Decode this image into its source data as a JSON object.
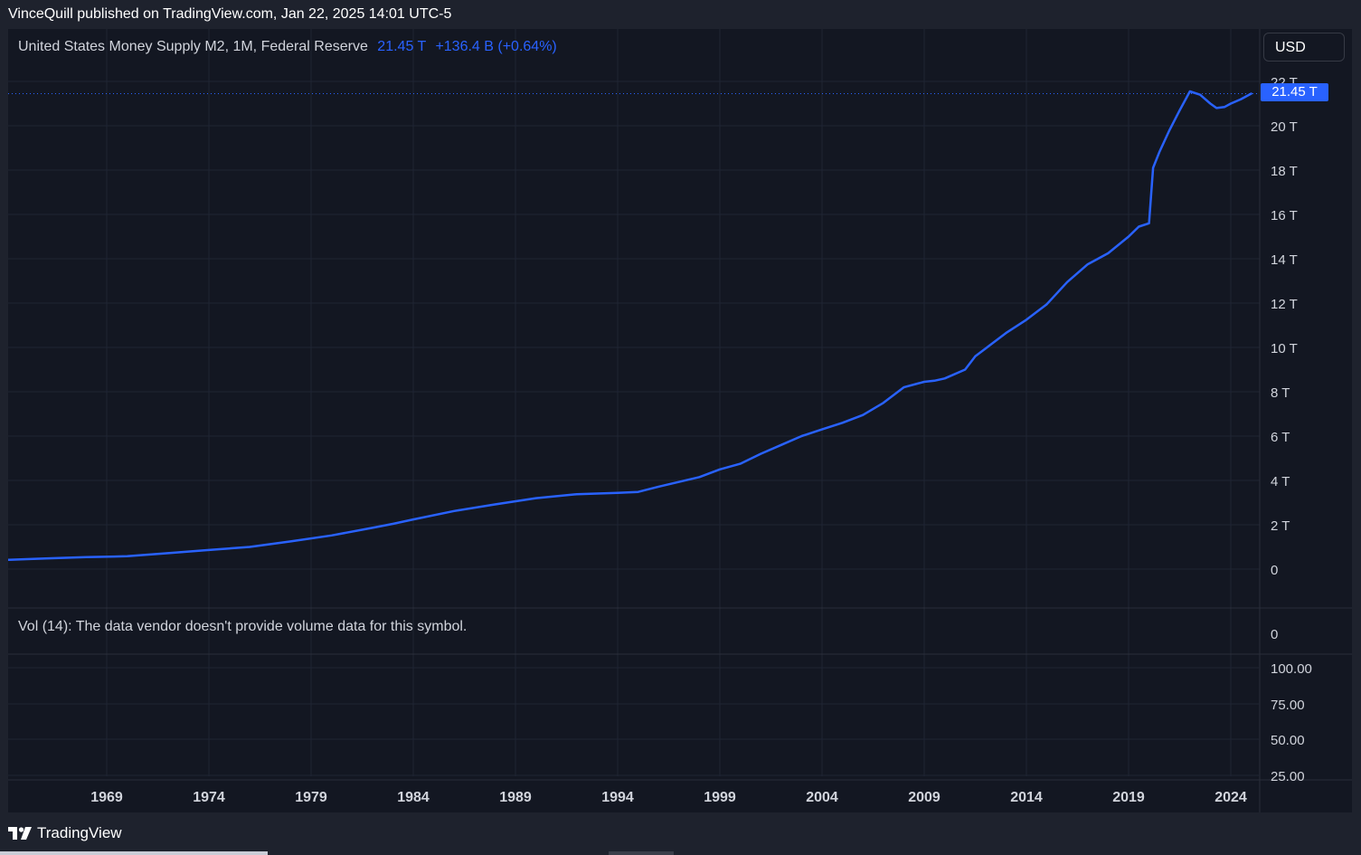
{
  "attribution": "VinceQuill published on TradingView.com, Jan 22, 2025 14:01 UTC-5",
  "legend": {
    "symbol": "United States Money Supply M2, 1M, Federal Reserve",
    "last_value": "21.45 T",
    "change": "+136.4 B (+0.64%)"
  },
  "currency": "USD",
  "price_tag": "21.45 T",
  "volume_pane": {
    "label": "Vol (14): The data vendor doesn't provide volume data for this symbol.",
    "axis_label": "0"
  },
  "oscillator_pane": {
    "tick_labels": [
      "100.00",
      "75.00",
      "50.00",
      "25.00"
    ]
  },
  "brand": "TradingView",
  "icons": {
    "brand_logo": "tradingview-logo-icon"
  },
  "colors": {
    "line": "#2962ff",
    "background": "#131722",
    "grid": "#1f2433",
    "text": "#d1d4dc"
  },
  "chart_data": {
    "type": "line",
    "title": "United States Money Supply M2, 1M, Federal Reserve",
    "xlabel": "",
    "ylabel": "",
    "x_ticks": [
      "1969",
      "1974",
      "1979",
      "1984",
      "1989",
      "1994",
      "1999",
      "2004",
      "2009",
      "2014",
      "2019",
      "2024"
    ],
    "y_ticks": [
      "0",
      "2 T",
      "4 T",
      "6 T",
      "8 T",
      "10 T",
      "12 T",
      "14 T",
      "16 T",
      "18 T",
      "20 T",
      "22 T"
    ],
    "ylim": [
      0,
      22
    ],
    "xlim": [
      1964.2,
      2025.1
    ],
    "grid": true,
    "series": [
      {
        "x": [
          1964.2,
          1966,
          1968,
          1970,
          1972,
          1974,
          1976,
          1978,
          1980,
          1982,
          1983,
          1984,
          1986,
          1988,
          1990,
          1992,
          1994,
          1995,
          1996,
          1998,
          1999,
          2000,
          2001,
          2002,
          2003,
          2004,
          2005,
          2006,
          2007,
          2008,
          2009,
          2009.5,
          2010,
          2011,
          2011.5,
          2012,
          2013,
          2014,
          2015,
          2016,
          2017,
          2018,
          2019,
          2019.5,
          2020,
          2020.2,
          2020.5,
          2021,
          2021.5,
          2022,
          2022.5,
          2023,
          2023.3,
          2023.7,
          2024,
          2024.5,
          2025.0
        ],
        "values": [
          0.42,
          0.48,
          0.54,
          0.58,
          0.72,
          0.86,
          1.0,
          1.25,
          1.52,
          1.86,
          2.04,
          2.24,
          2.62,
          2.92,
          3.2,
          3.38,
          3.44,
          3.48,
          3.72,
          4.15,
          4.5,
          4.75,
          5.2,
          5.6,
          6.0,
          6.3,
          6.6,
          6.95,
          7.5,
          8.2,
          8.45,
          8.5,
          8.6,
          9.0,
          9.6,
          9.95,
          10.65,
          11.25,
          11.95,
          12.95,
          13.75,
          14.25,
          15.0,
          15.45,
          15.6,
          18.1,
          18.8,
          19.8,
          20.7,
          21.55,
          21.4,
          21.0,
          20.8,
          20.85,
          21.0,
          21.2,
          21.45
        ]
      }
    ]
  }
}
